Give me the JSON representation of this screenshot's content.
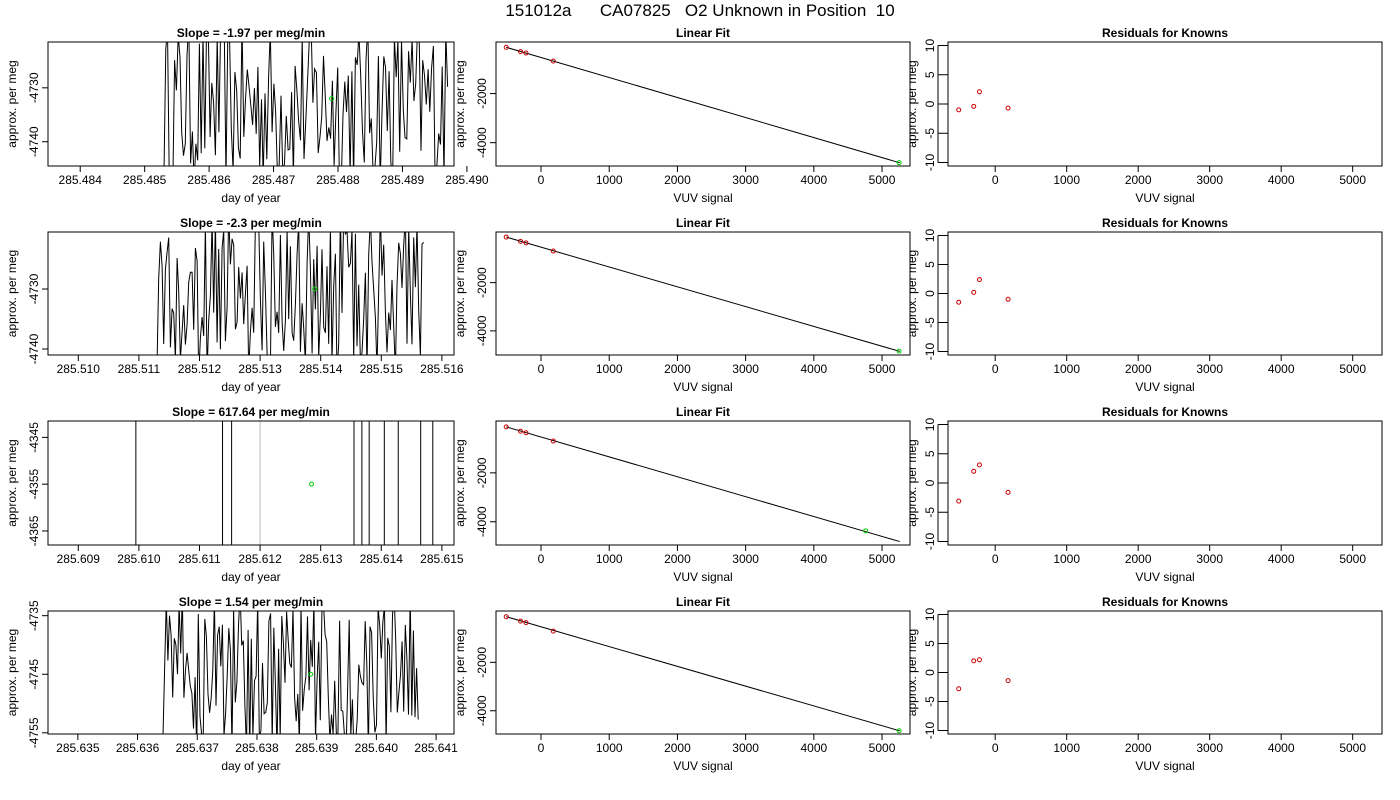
{
  "page": {
    "title": "151012a      CA07825   O2 Unknown in Position  10"
  },
  "chart_data": [
    {
      "type": "line",
      "row": 1,
      "panel": "drift",
      "title": "Slope =  -1.97  per meg/min",
      "xlabel": "day of year",
      "ylabel": "approx. per meg",
      "xlim": [
        285.4835,
        285.4898
      ],
      "xticks": [
        "285.484",
        "285.485",
        "285.486",
        "285.487",
        "285.488",
        "285.489",
        "285.490"
      ],
      "xtick_values": [
        285.484,
        285.485,
        285.486,
        285.487,
        285.488,
        285.489,
        285.49
      ],
      "ylim": [
        -4744.5,
        -4721.5
      ],
      "yticks": [
        "-4730",
        "-4740"
      ],
      "ytick_values": [
        -4730,
        -4740
      ],
      "trace_range": [
        285.4853,
        285.4897
      ],
      "trace_color": "#000000",
      "highlight_point": {
        "x": 285.4879,
        "y": -4732,
        "color": "#00cc00"
      }
    },
    {
      "type": "scatter",
      "row": 1,
      "panel": "fit",
      "title": "Linear Fit",
      "xlabel": "VUV signal",
      "ylabel": "approx. per meg",
      "xlim": [
        -660,
        5410
      ],
      "xticks": [
        "0",
        "1000",
        "2000",
        "3000",
        "4000",
        "5000"
      ],
      "xtick_values": [
        0,
        1000,
        2000,
        3000,
        4000,
        5000
      ],
      "ylim": [
        -4950,
        100
      ],
      "yticks": [
        "-2000",
        "-4000"
      ],
      "ytick_values": [
        -2000,
        -4000
      ],
      "fit_line": {
        "x": [
          -510,
          5260
        ],
        "y": [
          -115,
          -4820
        ]
      },
      "knowns": {
        "x": [
          -510,
          -300,
          -220,
          180
        ],
        "y": [
          -120,
          -290,
          -350,
          -680
        ],
        "color": "#cc0000"
      },
      "unknown": {
        "x": [
          5250
        ],
        "y": [
          -4815
        ],
        "color": "#00cc00"
      }
    },
    {
      "type": "scatter",
      "row": 1,
      "panel": "residuals",
      "title": "Residuals for Knowns",
      "xlabel": "VUV signal",
      "ylabel": "approx. per meg",
      "xlim": [
        -660,
        5410
      ],
      "xticks": [
        "0",
        "1000",
        "2000",
        "3000",
        "4000",
        "5000"
      ],
      "xtick_values": [
        0,
        1000,
        2000,
        3000,
        4000,
        5000
      ],
      "ylim": [
        -10.6,
        10.6
      ],
      "yticks": [
        "-10",
        "-5",
        "0",
        "5",
        "10"
      ],
      "ytick_values": [
        -10,
        -5,
        0,
        5,
        10
      ],
      "points": {
        "x": [
          -510,
          -300,
          -220,
          180
        ],
        "y": [
          -1.0,
          -0.4,
          2.1,
          -0.7
        ],
        "color": "#cc0000"
      }
    },
    {
      "type": "line",
      "row": 2,
      "panel": "drift",
      "title": "Slope =  -2.3  per meg/min",
      "xlabel": "day of year",
      "ylabel": "approx. per meg",
      "xlim": [
        285.5095,
        285.5162
      ],
      "xticks": [
        "285.510",
        "285.511",
        "285.512",
        "285.513",
        "285.514",
        "285.515",
        "285.516"
      ],
      "xtick_values": [
        285.51,
        285.511,
        285.512,
        285.513,
        285.514,
        285.515,
        285.516
      ],
      "ylim": [
        -4741,
        -4720.5
      ],
      "yticks": [
        "-4730",
        "-4740"
      ],
      "ytick_values": [
        -4730,
        -4740
      ],
      "trace_range": [
        285.5113,
        285.5157
      ],
      "trace_color": "#000000",
      "highlight_point": {
        "x": 285.5139,
        "y": -4730,
        "color": "#00cc00"
      }
    },
    {
      "type": "scatter",
      "row": 2,
      "panel": "fit",
      "title": "Linear Fit",
      "xlabel": "VUV signal",
      "ylabel": "approx. per meg",
      "xlim": [
        -660,
        5410
      ],
      "xticks": [
        "0",
        "1000",
        "2000",
        "3000",
        "4000",
        "5000"
      ],
      "xtick_values": [
        0,
        1000,
        2000,
        3000,
        4000,
        5000
      ],
      "ylim": [
        -5000,
        100
      ],
      "yticks": [
        "-2000",
        "-4000"
      ],
      "ytick_values": [
        -2000,
        -4000
      ],
      "fit_line": {
        "x": [
          -510,
          5260
        ],
        "y": [
          -110,
          -4850
        ]
      },
      "knowns": {
        "x": [
          -510,
          -300,
          -220,
          180
        ],
        "y": [
          -110,
          -290,
          -350,
          -690
        ],
        "color": "#cc0000"
      },
      "unknown": {
        "x": [
          5250
        ],
        "y": [
          -4840
        ],
        "color": "#00cc00"
      }
    },
    {
      "type": "scatter",
      "row": 2,
      "panel": "residuals",
      "title": "Residuals for Knowns",
      "xlabel": "VUV signal",
      "ylabel": "approx. per meg",
      "xlim": [
        -660,
        5410
      ],
      "xticks": [
        "0",
        "1000",
        "2000",
        "3000",
        "4000",
        "5000"
      ],
      "xtick_values": [
        0,
        1000,
        2000,
        3000,
        4000,
        5000
      ],
      "ylim": [
        -10.6,
        10.6
      ],
      "yticks": [
        "-10",
        "-5",
        "0",
        "5",
        "10"
      ],
      "ytick_values": [
        -10,
        -5,
        0,
        5,
        10
      ],
      "points": {
        "x": [
          -510,
          -300,
          -220,
          180
        ],
        "y": [
          -1.5,
          0.2,
          2.4,
          -1.0
        ],
        "color": "#cc0000"
      }
    },
    {
      "type": "line",
      "row": 3,
      "panel": "drift",
      "title": "Slope =  617.64  per meg/min",
      "xlabel": "day of year",
      "ylabel": "approx. per meg",
      "xlim": [
        285.6085,
        285.6152
      ],
      "xticks": [
        "285.609",
        "285.610",
        "285.611",
        "285.612",
        "285.613",
        "285.614",
        "285.615"
      ],
      "xtick_values": [
        285.609,
        285.61,
        285.611,
        285.612,
        285.613,
        285.614,
        285.615
      ],
      "ylim": [
        -4368,
        -4341.5
      ],
      "yticks": [
        "-4345",
        "-4355",
        "-4365"
      ],
      "ytick_values": [
        -4345,
        -4355,
        -4365
      ],
      "vertical_lines": [
        285.60995,
        285.61138,
        285.61153,
        285.61355,
        285.61368,
        285.6138,
        285.61405,
        285.61428,
        285.61465,
        285.61485
      ],
      "grey_line": 285.612,
      "trace_color": "#000000",
      "highlight_point": {
        "x": 285.61285,
        "y": -4355,
        "color": "#00cc00"
      }
    },
    {
      "type": "scatter",
      "row": 3,
      "panel": "fit",
      "title": "Linear Fit",
      "xlabel": "VUV signal",
      "ylabel": "approx. per meg",
      "xlim": [
        -660,
        5410
      ],
      "xticks": [
        "0",
        "1000",
        "2000",
        "3000",
        "4000",
        "5000"
      ],
      "xtick_values": [
        0,
        1000,
        2000,
        3000,
        4000,
        5000
      ],
      "ylim": [
        -4950,
        120
      ],
      "yticks": [
        "-2000",
        "-4000"
      ],
      "ytick_values": [
        -2000,
        -4000
      ],
      "fit_line": {
        "x": [
          -510,
          5260
        ],
        "y": [
          -120,
          -4810
        ]
      },
      "knowns": {
        "x": [
          -510,
          -300,
          -220,
          180
        ],
        "y": [
          -120,
          -300,
          -360,
          -700
        ],
        "color": "#cc0000"
      },
      "unknown": {
        "x": [
          4760
        ],
        "y": [
          -4370
        ],
        "color": "#00cc00"
      }
    },
    {
      "type": "scatter",
      "row": 3,
      "panel": "residuals",
      "title": "Residuals for Knowns",
      "xlabel": "VUV signal",
      "ylabel": "approx. per meg",
      "xlim": [
        -660,
        5410
      ],
      "xticks": [
        "0",
        "1000",
        "2000",
        "3000",
        "4000",
        "5000"
      ],
      "xtick_values": [
        0,
        1000,
        2000,
        3000,
        4000,
        5000
      ],
      "ylim": [
        -10.6,
        10.6
      ],
      "yticks": [
        "-10",
        "-5",
        "0",
        "5",
        "10"
      ],
      "ytick_values": [
        -10,
        -5,
        0,
        5,
        10
      ],
      "points": {
        "x": [
          -510,
          -300,
          -220,
          180
        ],
        "y": [
          -3.1,
          2.0,
          3.1,
          -1.6
        ],
        "color": "#cc0000"
      }
    },
    {
      "type": "line",
      "row": 4,
      "panel": "drift",
      "title": "Slope =  1.54  per meg/min",
      "xlabel": "day of year",
      "ylabel": "approx. per meg",
      "xlim": [
        285.6345,
        285.6413
      ],
      "xticks": [
        "285.635",
        "285.636",
        "285.637",
        "285.638",
        "285.639",
        "285.640",
        "285.641"
      ],
      "xtick_values": [
        285.635,
        285.636,
        285.637,
        285.638,
        285.639,
        285.64,
        285.641
      ],
      "ylim": [
        -4755.2,
        -4734.2
      ],
      "yticks": [
        "-4735",
        "-4745",
        "-4755"
      ],
      "ytick_values": [
        -4735,
        -4745,
        -4755
      ],
      "trace_range": [
        285.6364,
        285.6407
      ],
      "trace_color": "#000000",
      "highlight_point": {
        "x": 285.6389,
        "y": -4745,
        "color": "#00cc00"
      }
    },
    {
      "type": "scatter",
      "row": 4,
      "panel": "fit",
      "title": "Linear Fit",
      "xlabel": "VUV signal",
      "ylabel": "approx. per meg",
      "xlim": [
        -660,
        5410
      ],
      "xticks": [
        "0",
        "1000",
        "2000",
        "3000",
        "4000",
        "5000"
      ],
      "xtick_values": [
        0,
        1000,
        2000,
        3000,
        4000,
        5000
      ],
      "ylim": [
        -4960,
        120
      ],
      "yticks": [
        "-2000",
        "-4000"
      ],
      "ytick_values": [
        -2000,
        -4000
      ],
      "fit_line": {
        "x": [
          -510,
          5260
        ],
        "y": [
          -115,
          -4830
        ]
      },
      "knowns": {
        "x": [
          -510,
          -300,
          -220,
          180
        ],
        "y": [
          -115,
          -300,
          -360,
          -710
        ],
        "color": "#cc0000"
      },
      "unknown": {
        "x": [
          5250
        ],
        "y": [
          -4825
        ],
        "color": "#00cc00"
      }
    },
    {
      "type": "scatter",
      "row": 4,
      "panel": "residuals",
      "title": "Residuals for Knowns",
      "xlabel": "VUV signal",
      "ylabel": "approx. per meg",
      "xlim": [
        -660,
        5410
      ],
      "xticks": [
        "0",
        "1000",
        "2000",
        "3000",
        "4000",
        "5000"
      ],
      "xtick_values": [
        0,
        1000,
        2000,
        3000,
        4000,
        5000
      ],
      "ylim": [
        -10.6,
        10.6
      ],
      "yticks": [
        "-10",
        "-5",
        "0",
        "5",
        "10"
      ],
      "ytick_values": [
        -10,
        -5,
        0,
        5,
        10
      ],
      "points": {
        "x": [
          -510,
          -300,
          -220,
          180
        ],
        "y": [
          -2.8,
          2.0,
          2.2,
          -1.4
        ],
        "color": "#cc0000"
      }
    }
  ]
}
